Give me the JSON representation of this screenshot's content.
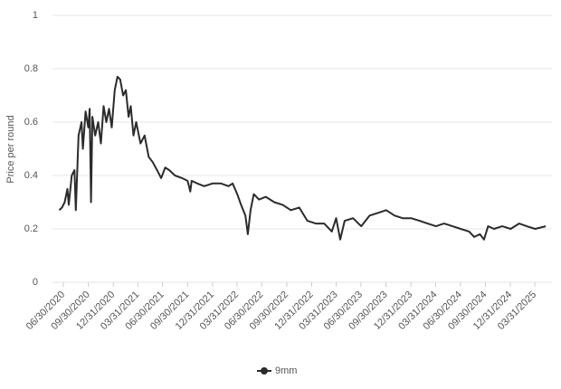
{
  "chart_data": {
    "type": "line",
    "y_label": "Price per round",
    "x": [
      "06/15/2020",
      "06/25/2020",
      "07/05/2020",
      "07/15/2020",
      "07/20/2020",
      "07/31/2020",
      "08/10/2020",
      "08/15/2020",
      "08/25/2020",
      "09/05/2020",
      "09/10/2020",
      "09/20/2020",
      "09/30/2020",
      "10/05/2020",
      "10/10/2020",
      "10/15/2020",
      "10/25/2020",
      "11/05/2020",
      "11/15/2020",
      "11/25/2020",
      "12/05/2020",
      "12/15/2020",
      "12/25/2020",
      "01/05/2021",
      "01/15/2021",
      "01/25/2021",
      "02/05/2021",
      "02/15/2021",
      "02/25/2021",
      "03/05/2021",
      "03/15/2021",
      "03/25/2021",
      "04/10/2021",
      "04/25/2021",
      "05/10/2021",
      "05/25/2021",
      "06/10/2021",
      "06/25/2021",
      "07/10/2021",
      "07/25/2021",
      "08/15/2021",
      "09/10/2021",
      "09/30/2021",
      "10/10/2021",
      "10/15/2021",
      "11/05/2021",
      "11/30/2021",
      "12/31/2021",
      "01/31/2022",
      "02/28/2022",
      "03/15/2022",
      "04/01/2022",
      "04/15/2022",
      "05/01/2022",
      "05/10/2022",
      "05/20/2022",
      "06/01/2022",
      "06/20/2022",
      "07/15/2022",
      "08/15/2022",
      "09/15/2022",
      "10/15/2022",
      "11/15/2022",
      "12/15/2022",
      "01/15/2023",
      "02/15/2023",
      "03/15/2023",
      "03/31/2023",
      "04/15/2023",
      "05/01/2023",
      "06/01/2023",
      "07/01/2023",
      "08/01/2023",
      "09/01/2023",
      "10/01/2023",
      "11/01/2023",
      "12/01/2023",
      "01/01/2024",
      "02/01/2024",
      "03/01/2024",
      "04/01/2024",
      "05/01/2024",
      "06/01/2024",
      "07/01/2024",
      "08/01/2024",
      "08/20/2024",
      "09/10/2024",
      "09/25/2024",
      "10/10/2024",
      "11/01/2024",
      "12/01/2024",
      "01/01/2025",
      "02/01/2025",
      "03/01/2025",
      "04/01/2025",
      "05/10/2025"
    ],
    "series": [
      {
        "name": "9mm",
        "color": "#2b2b2b",
        "values": [
          0.27,
          0.28,
          0.3,
          0.35,
          0.29,
          0.4,
          0.42,
          0.27,
          0.55,
          0.6,
          0.5,
          0.64,
          0.58,
          0.65,
          0.3,
          0.62,
          0.55,
          0.6,
          0.52,
          0.66,
          0.6,
          0.65,
          0.58,
          0.72,
          0.77,
          0.76,
          0.7,
          0.72,
          0.62,
          0.66,
          0.55,
          0.6,
          0.52,
          0.55,
          0.47,
          0.45,
          0.42,
          0.39,
          0.43,
          0.42,
          0.4,
          0.39,
          0.38,
          0.34,
          0.38,
          0.37,
          0.36,
          0.37,
          0.37,
          0.36,
          0.37,
          0.33,
          0.29,
          0.25,
          0.18,
          0.27,
          0.33,
          0.31,
          0.32,
          0.3,
          0.29,
          0.27,
          0.28,
          0.23,
          0.22,
          0.22,
          0.19,
          0.24,
          0.16,
          0.23,
          0.24,
          0.21,
          0.25,
          0.26,
          0.27,
          0.25,
          0.24,
          0.24,
          0.23,
          0.22,
          0.21,
          0.22,
          0.21,
          0.2,
          0.19,
          0.17,
          0.18,
          0.16,
          0.21,
          0.2,
          0.21,
          0.2,
          0.22,
          0.21,
          0.2,
          0.21
        ]
      }
    ],
    "xlim": [
      "05/21/2020",
      "06/02/2025"
    ],
    "xticks": [
      "06/30/2020",
      "09/30/2020",
      "12/31/2020",
      "03/31/2021",
      "06/30/2021",
      "09/30/2021",
      "12/31/2021",
      "03/31/2022",
      "06/30/2022",
      "09/30/2022",
      "12/31/2022",
      "03/31/2023",
      "06/30/2023",
      "09/30/2023",
      "12/31/2023",
      "03/31/2024",
      "06/30/2024",
      "09/30/2024",
      "12/31/2024",
      "03/31/2025"
    ],
    "ylim": [
      0,
      1
    ],
    "yticks": [
      0,
      0.2,
      0.4,
      0.6,
      0.8,
      1
    ],
    "grid": true,
    "legend": "bottom"
  }
}
